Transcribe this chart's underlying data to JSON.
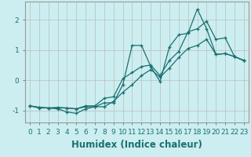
{
  "xlabel": "Humidex (Indice chaleur)",
  "background_color": "#cceef0",
  "line_color": "#1a7070",
  "grid_color": "#bbbbbb",
  "xlim": [
    -0.5,
    23.5
  ],
  "ylim": [
    -1.4,
    2.6
  ],
  "yticks": [
    -1,
    0,
    1,
    2
  ],
  "xticks": [
    0,
    1,
    2,
    3,
    4,
    5,
    6,
    7,
    8,
    9,
    10,
    11,
    12,
    13,
    14,
    15,
    16,
    17,
    18,
    19,
    20,
    21,
    22,
    23
  ],
  "line1_x": [
    0,
    1,
    2,
    3,
    4,
    5,
    6,
    7,
    8,
    9,
    10,
    11,
    12,
    13,
    14,
    15,
    16,
    17,
    18,
    19,
    20,
    21,
    22,
    23
  ],
  "line1_y": [
    -0.85,
    -0.9,
    -0.92,
    -0.92,
    -0.92,
    -0.95,
    -0.88,
    -0.88,
    -0.88,
    -0.7,
    -0.4,
    -0.15,
    0.15,
    0.35,
    0.1,
    0.4,
    0.75,
    1.05,
    1.15,
    1.35,
    0.85,
    0.88,
    0.78,
    0.65
  ],
  "line2_x": [
    0,
    1,
    2,
    3,
    4,
    5,
    6,
    7,
    8,
    9,
    10,
    11,
    12,
    13,
    14,
    15,
    16,
    17,
    18,
    19,
    20,
    21,
    22,
    23
  ],
  "line2_y": [
    -0.85,
    -0.92,
    -0.92,
    -0.95,
    -1.05,
    -1.1,
    -0.95,
    -0.88,
    -0.75,
    -0.75,
    -0.15,
    1.15,
    1.15,
    0.45,
    -0.05,
    1.1,
    1.5,
    1.55,
    2.35,
    1.7,
    0.85,
    0.88,
    0.78,
    0.65
  ],
  "line3_x": [
    0,
    1,
    2,
    3,
    4,
    5,
    6,
    7,
    8,
    9,
    10,
    11,
    12,
    13,
    14,
    15,
    16,
    17,
    18,
    19,
    20,
    21,
    22,
    23
  ],
  "line3_y": [
    -0.85,
    -0.9,
    -0.92,
    -0.9,
    -0.92,
    -0.95,
    -0.85,
    -0.85,
    -0.6,
    -0.55,
    0.05,
    0.25,
    0.45,
    0.5,
    0.15,
    0.65,
    0.95,
    1.6,
    1.7,
    1.95,
    1.35,
    1.4,
    0.78,
    0.65
  ],
  "tick_fontsize": 6.5,
  "xlabel_fontsize": 8.5
}
